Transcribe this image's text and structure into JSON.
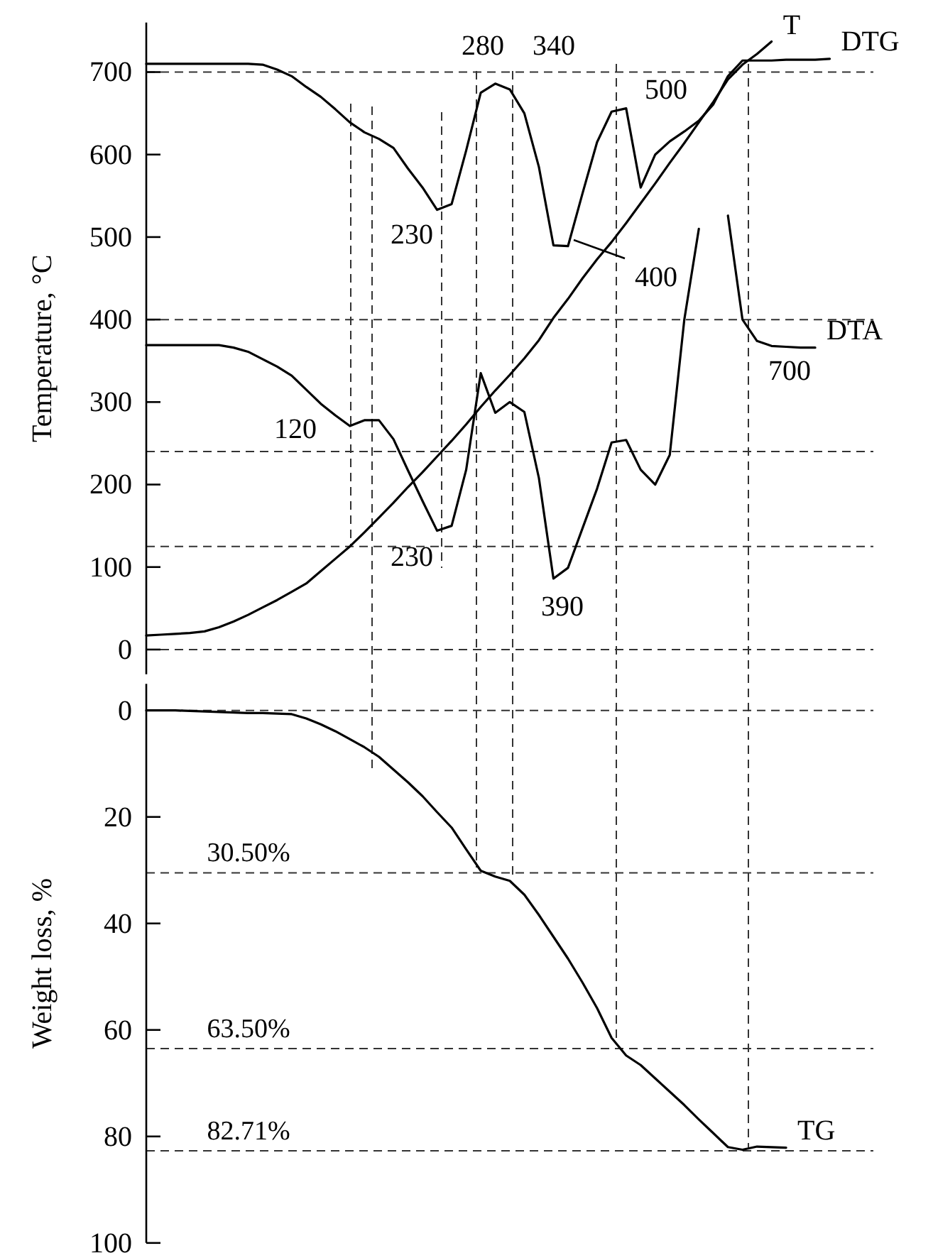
{
  "chart_data": [
    {
      "type": "line",
      "ylabel": "Temperature, °C",
      "ylim": [
        -30,
        760
      ],
      "yticks": [
        0,
        100,
        200,
        300,
        400,
        500,
        600,
        700
      ],
      "tick_labels": "y",
      "grid": false,
      "marker": "none",
      "line_style": "solid",
      "categories": [
        null,
        null,
        null,
        null,
        null,
        null,
        null,
        null,
        null,
        null,
        null,
        null,
        null,
        null,
        null,
        null,
        null,
        null,
        null,
        null,
        null,
        null,
        null,
        null,
        null,
        null,
        null,
        null,
        null,
        null,
        null,
        null,
        null,
        null,
        null,
        null,
        null,
        null,
        null,
        null,
        null,
        null,
        null,
        null,
        null,
        null,
        null,
        null,
        null,
        null,
        null
      ],
      "series": [
        {
          "name": "T",
          "color": "#000000",
          "values": [
            17,
            18,
            19,
            20,
            22,
            27,
            34,
            42,
            51,
            60,
            70,
            80,
            95,
            110,
            125,
            142,
            160,
            178,
            197,
            215,
            234,
            253,
            273,
            294,
            314,
            333,
            353,
            375,
            402,
            425,
            450,
            473,
            494,
            517,
            541,
            565,
            590,
            614,
            639,
            664,
            691,
            709,
            722,
            737,
            null,
            null,
            null,
            null,
            null,
            null,
            null
          ]
        },
        {
          "name": "DTG",
          "color": "#000000",
          "values": [
            710,
            710,
            710,
            710,
            710,
            710,
            710,
            710,
            709,
            703,
            695,
            682,
            670,
            655,
            639,
            627,
            619,
            608,
            583,
            560,
            533,
            540,
            605,
            675,
            686,
            679,
            650,
            585,
            490,
            489,
            553,
            615,
            652,
            656,
            560,
            600,
            616,
            628,
            641,
            661,
            695,
            714,
            714,
            714,
            715,
            715,
            715,
            716,
            null,
            null,
            null
          ]
        },
        {
          "name": "DTA",
          "color": "#000000",
          "values": [
            369,
            369,
            369,
            369,
            369,
            369,
            366,
            361,
            352,
            343,
            332,
            315,
            298,
            284,
            271,
            278,
            278,
            255,
            217,
            180,
            144,
            150,
            218,
            335,
            287,
            300,
            288,
            208,
            86,
            99,
            147,
            195,
            251,
            254,
            218,
            200,
            236,
            400,
            510,
            null,
            526,
            400,
            374,
            368,
            367,
            366,
            366,
            null,
            null,
            null,
            null
          ]
        }
      ],
      "ref_lines": [
        {
          "axis": "y",
          "value": 700,
          "line_style": "dashed"
        },
        {
          "axis": "y",
          "value": 400,
          "line_style": "dashed"
        },
        {
          "axis": "y",
          "value": 240,
          "line_style": "dashed"
        },
        {
          "axis": "y",
          "value": 125,
          "line_style": "dashed"
        },
        {
          "axis": "y",
          "value": 0,
          "line_style": "dashed"
        }
      ],
      "annotations": [
        "230",
        "280",
        "340",
        "500",
        "400",
        "700",
        "120",
        "230",
        "390"
      ]
    },
    {
      "type": "line",
      "ylabel": "Weight loss, %",
      "ylim": [
        100,
        -5
      ],
      "yticks": [
        0,
        20,
        40,
        60,
        80,
        100
      ],
      "tick_labels": "y",
      "grid": false,
      "marker": "none",
      "line_style": "solid",
      "categories": [
        null,
        null,
        null,
        null,
        null,
        null,
        null,
        null,
        null,
        null,
        null,
        null,
        null,
        null,
        null,
        null,
        null,
        null,
        null,
        null,
        null,
        null,
        null,
        null,
        null,
        null,
        null,
        null,
        null,
        null,
        null,
        null,
        null,
        null,
        null,
        null,
        null,
        null,
        null,
        null,
        null,
        null,
        null,
        null,
        null,
        null,
        null,
        null,
        null,
        null,
        null
      ],
      "series": [
        {
          "name": "TG",
          "color": "#000000",
          "values": [
            0,
            0,
            0,
            0.1,
            0.2,
            0.3,
            0.4,
            0.5,
            0.5,
            0.6,
            0.7,
            1.5,
            2.6,
            3.9,
            5.4,
            6.9,
            8.7,
            11.1,
            13.5,
            16.1,
            19.1,
            22.0,
            26.1,
            30.1,
            31.2,
            32.0,
            34.6,
            38.4,
            42.5,
            46.6,
            51.1,
            55.9,
            61.5,
            64.8,
            66.6,
            69.1,
            71.6,
            74.1,
            76.8,
            79.4,
            82.0,
            82.5,
            81.9,
            82.0,
            82.1,
            null,
            null,
            null,
            null,
            null,
            null
          ]
        }
      ],
      "ref_lines": [
        {
          "axis": "y",
          "value": 0,
          "line_style": "dashed"
        },
        {
          "axis": "y",
          "value": 30.5,
          "label": "30.50%",
          "line_style": "dashed"
        },
        {
          "axis": "y",
          "value": 63.5,
          "label": "63.50%",
          "line_style": "dashed"
        },
        {
          "axis": "y",
          "value": 82.71,
          "label": "82.71%",
          "line_style": "dashed"
        }
      ]
    }
  ]
}
